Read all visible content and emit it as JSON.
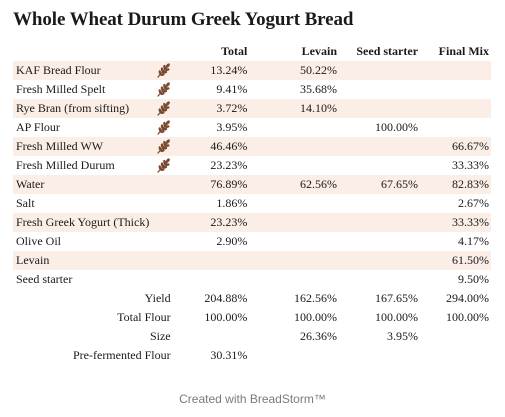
{
  "title": "Whole Wheat Durum Greek Yogurt Bread",
  "columns": {
    "total": "Total",
    "levain": "Levain",
    "seed": "Seed starter",
    "final": "Final Mix"
  },
  "rows": [
    {
      "name": "KAF Bread Flour",
      "icon": "wheat-icon",
      "total": "13.24%",
      "levain": "50.22%",
      "seed": "",
      "final": ""
    },
    {
      "name": "Fresh Milled Spelt",
      "icon": "wheat-icon",
      "total": "9.41%",
      "levain": "35.68%",
      "seed": "",
      "final": ""
    },
    {
      "name": "Rye Bran (from sifting)",
      "icon": "wheat-icon",
      "total": "3.72%",
      "levain": "14.10%",
      "seed": "",
      "final": ""
    },
    {
      "name": "AP Flour",
      "icon": "wheat-icon",
      "total": "3.95%",
      "levain": "",
      "seed": "100.00%",
      "final": ""
    },
    {
      "name": "Fresh Milled WW",
      "icon": "wheat-icon",
      "total": "46.46%",
      "levain": "",
      "seed": "",
      "final": "66.67%"
    },
    {
      "name": "Fresh Milled Durum",
      "icon": "wheat-icon",
      "total": "23.23%",
      "levain": "",
      "seed": "",
      "final": "33.33%"
    },
    {
      "name": "Water",
      "icon": "",
      "total": "76.89%",
      "levain": "62.56%",
      "seed": "67.65%",
      "final": "82.83%"
    },
    {
      "name": "Salt",
      "icon": "",
      "total": "1.86%",
      "levain": "",
      "seed": "",
      "final": "2.67%"
    },
    {
      "name": "Fresh Greek Yogurt (Thick)",
      "icon": "",
      "total": "23.23%",
      "levain": "",
      "seed": "",
      "final": "33.33%"
    },
    {
      "name": "Olive Oil",
      "icon": "",
      "total": "2.90%",
      "levain": "",
      "seed": "",
      "final": "4.17%"
    },
    {
      "name": "Levain",
      "icon": "",
      "total": "",
      "levain": "",
      "seed": "",
      "final": "61.50%"
    },
    {
      "name": "Seed starter",
      "icon": "",
      "total": "",
      "levain": "",
      "seed": "",
      "final": "9.50%"
    }
  ],
  "summary": [
    {
      "label": "Yield",
      "total": "204.88%",
      "levain": "162.56%",
      "seed": "167.65%",
      "final": "294.00%"
    },
    {
      "label": "Total Flour",
      "total": "100.00%",
      "levain": "100.00%",
      "seed": "100.00%",
      "final": "100.00%"
    },
    {
      "label": "Size",
      "total": "",
      "levain": "26.36%",
      "seed": "3.95%",
      "final": ""
    },
    {
      "label": "Pre-fermented Flour",
      "total": "30.31%",
      "levain": "",
      "seed": "",
      "final": ""
    }
  ],
  "colors": {
    "row_shade": "#fbeee6",
    "wheat": "#7a4a2e"
  },
  "footer": "Created with BreadStorm™"
}
